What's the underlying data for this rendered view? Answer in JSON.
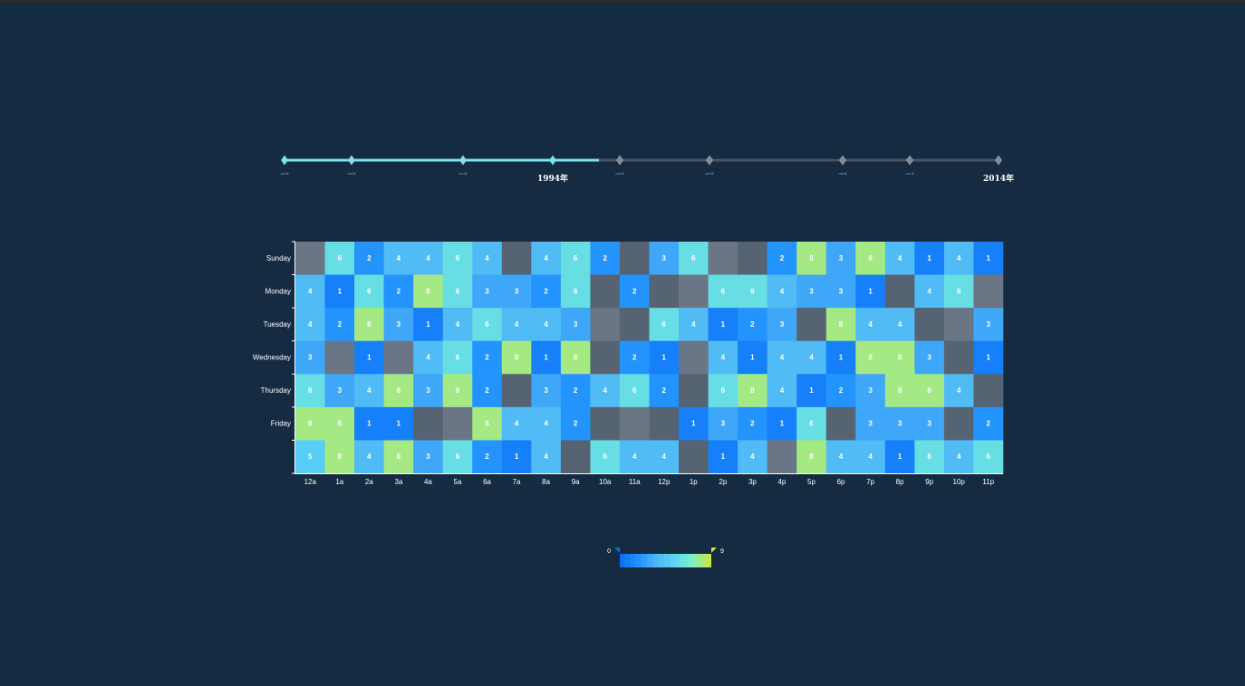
{
  "timeline": {
    "years": [
      "1954年",
      "1964年",
      "1974年",
      "1994年",
      "1999年",
      "2004年",
      "2009年",
      "2011年",
      "2014年"
    ],
    "year_values": [
      1954,
      1964,
      1974,
      1994,
      1999,
      2004,
      2009,
      2011,
      2014
    ],
    "tick_x": [
      314,
      388,
      511,
      610,
      684,
      783,
      930,
      1004,
      1102
    ],
    "current_index": 3,
    "progress_to_x": 661,
    "labeled": [
      3,
      8
    ],
    "colors": {
      "active": "#7fe3ee",
      "inactive": "#495664",
      "marker_inactive": "#7d8a96"
    }
  },
  "visual_map": {
    "min_label": "0",
    "max_label": "9",
    "min": 0,
    "max": 9,
    "colors": [
      "#0a6cf2",
      "#1e90ff",
      "#4fb3f5",
      "#5ad5f5",
      "#7ef0c0",
      "#d3e13a"
    ]
  },
  "chart_data": {
    "type": "heatmap",
    "title": "",
    "xlabel": "",
    "ylabel": "",
    "x_categories": [
      "12a",
      "1a",
      "2a",
      "3a",
      "4a",
      "5a",
      "6a",
      "7a",
      "8a",
      "9a",
      "10a",
      "11a",
      "12p",
      "1p",
      "2p",
      "3p",
      "4p",
      "5p",
      "6p",
      "7p",
      "8p",
      "9p",
      "10p",
      "11p"
    ],
    "y_categories": [
      "Sunday",
      "Monday",
      "Tuesday",
      "Wednesday",
      "Thursday",
      "Friday",
      ""
    ],
    "value_range": [
      0,
      9
    ],
    "null_color": "#566373",
    "null_color_alt": "#6a7585",
    "rows": [
      [
        null,
        6,
        2,
        4,
        4,
        6,
        4,
        null,
        4,
        6,
        2,
        null,
        3,
        6,
        null,
        null,
        2,
        8,
        3,
        8,
        4,
        1,
        4,
        1
      ],
      [
        4,
        1,
        6,
        2,
        8,
        6,
        3,
        3,
        2,
        6,
        null,
        2,
        null,
        null,
        6,
        6,
        4,
        3,
        3,
        1,
        null,
        4,
        6,
        null
      ],
      [
        4,
        2,
        8,
        3,
        1,
        4,
        6,
        4,
        4,
        3,
        null,
        null,
        6,
        4,
        1,
        2,
        3,
        null,
        8,
        4,
        4,
        null,
        null,
        3
      ],
      [
        3,
        null,
        1,
        null,
        4,
        6,
        2,
        8,
        1,
        8,
        null,
        2,
        1,
        null,
        4,
        1,
        4,
        4,
        1,
        8,
        8,
        3,
        null,
        1
      ],
      [
        6,
        3,
        4,
        8,
        3,
        8,
        2,
        null,
        3,
        2,
        4,
        6,
        2,
        null,
        6,
        8,
        4,
        1,
        2,
        3,
        8,
        8,
        4,
        null
      ],
      [
        8,
        8,
        1,
        1,
        null,
        null,
        8,
        4,
        4,
        2,
        null,
        null,
        null,
        1,
        3,
        2,
        1,
        6,
        null,
        3,
        3,
        3,
        null,
        2
      ],
      [
        5,
        8,
        4,
        8,
        3,
        6,
        2,
        1,
        4,
        null,
        6,
        4,
        4,
        null,
        1,
        4,
        null,
        8,
        4,
        4,
        1,
        6,
        4,
        6
      ]
    ]
  }
}
